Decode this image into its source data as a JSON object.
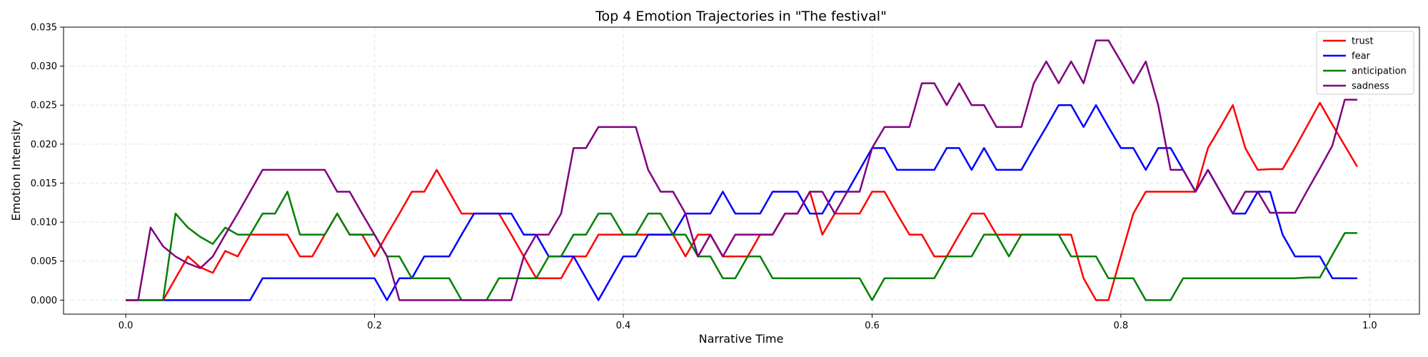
{
  "chart_data": {
    "type": "line",
    "title": "Top 4 Emotion Trajectories in \"The festival\"",
    "xlabel": "Narrative Time",
    "ylabel": "Emotion Intensity",
    "xlim": [
      -0.05,
      1.04
    ],
    "ylim": [
      -0.0018,
      0.035
    ],
    "xticks": [
      0.0,
      0.2,
      0.4,
      0.6,
      0.8,
      1.0
    ],
    "xtick_labels": [
      "0.0",
      "0.2",
      "0.4",
      "0.6",
      "0.8",
      "1.0"
    ],
    "yticks": [
      0.0,
      0.005,
      0.01,
      0.015,
      0.02,
      0.025,
      0.03,
      0.035
    ],
    "ytick_labels": [
      "0.000",
      "0.005",
      "0.010",
      "0.015",
      "0.020",
      "0.025",
      "0.030",
      "0.035"
    ],
    "grid": true,
    "legend_position": "top-right",
    "x": [
      0.0,
      0.01,
      0.02,
      0.03,
      0.04,
      0.05,
      0.06,
      0.07,
      0.08,
      0.09,
      0.1,
      0.11,
      0.12,
      0.13,
      0.14,
      0.15,
      0.16,
      0.17,
      0.18,
      0.19,
      0.2,
      0.21,
      0.22,
      0.23,
      0.24,
      0.25,
      0.26,
      0.27,
      0.28,
      0.29,
      0.3,
      0.31,
      0.32,
      0.33,
      0.34,
      0.35,
      0.36,
      0.37,
      0.38,
      0.39,
      0.4,
      0.41,
      0.42,
      0.43,
      0.44,
      0.45,
      0.46,
      0.47,
      0.48,
      0.49,
      0.5,
      0.51,
      0.52,
      0.53,
      0.54,
      0.55,
      0.56,
      0.57,
      0.58,
      0.59,
      0.6,
      0.61,
      0.62,
      0.63,
      0.64,
      0.65,
      0.66,
      0.67,
      0.68,
      0.69,
      0.7,
      0.71,
      0.72,
      0.73,
      0.74,
      0.75,
      0.76,
      0.77,
      0.78,
      0.79,
      0.8,
      0.81,
      0.82,
      0.83,
      0.84,
      0.85,
      0.86,
      0.87,
      0.88,
      0.89,
      0.9,
      0.91,
      0.92,
      0.93,
      0.94,
      0.95,
      0.96,
      0.97,
      0.98,
      0.99
    ],
    "series": [
      {
        "name": "trust",
        "color": "#ff0000",
        "values": [
          0,
          0,
          0,
          0,
          0.0028,
          0.0056,
          0.0042,
          0.0035,
          0.0063,
          0.0056,
          0.0084,
          0.0084,
          0.0084,
          0.0084,
          0.0056,
          0.0056,
          0.0084,
          0.0111,
          0.0084,
          0.0084,
          0.0056,
          0.0084,
          0.0111,
          0.0139,
          0.0139,
          0.0167,
          0.0139,
          0.0111,
          0.0111,
          0.0111,
          0.0111,
          0.0084,
          0.0056,
          0.0028,
          0.0028,
          0.0028,
          0.0056,
          0.0056,
          0.0084,
          0.0084,
          0.0084,
          0.0084,
          0.0084,
          0.0084,
          0.0084,
          0.0056,
          0.0084,
          0.0084,
          0.0056,
          0.0056,
          0.0056,
          0.0084,
          0.0084,
          0.0111,
          0.0111,
          0.0139,
          0.0084,
          0.0111,
          0.0111,
          0.0111,
          0.0139,
          0.0139,
          0.0111,
          0.0084,
          0.0084,
          0.0056,
          0.0056,
          0.0084,
          0.0111,
          0.0111,
          0.0084,
          0.0084,
          0.0084,
          0.0084,
          0.0084,
          0.0084,
          0.0084,
          0.0028,
          0,
          0,
          0.0056,
          0.0111,
          0.0139,
          0.0139,
          0.0139,
          0.0139,
          0.0139,
          0.0195,
          0.0222,
          0.025,
          0.0195,
          0.0167,
          0.0168,
          0.0168,
          0.0195,
          0.0224,
          0.0253,
          0.0225,
          0.0198,
          0.0171
        ]
      },
      {
        "name": "fear",
        "color": "#0000ff",
        "values": [
          0,
          0,
          0,
          0,
          0,
          0,
          0,
          0,
          0,
          0,
          0,
          0.0028,
          0.0028,
          0.0028,
          0.0028,
          0.0028,
          0.0028,
          0.0028,
          0.0028,
          0.0028,
          0.0028,
          0,
          0.0028,
          0.0028,
          0.0056,
          0.0056,
          0.0056,
          0.0084,
          0.0111,
          0.0111,
          0.0111,
          0.0111,
          0.0084,
          0.0084,
          0.0056,
          0.0056,
          0.0056,
          0.0028,
          0,
          0.0028,
          0.0056,
          0.0056,
          0.0084,
          0.0084,
          0.0084,
          0.0111,
          0.0111,
          0.0111,
          0.0139,
          0.0111,
          0.0111,
          0.0111,
          0.0139,
          0.0139,
          0.0139,
          0.0111,
          0.0111,
          0.0139,
          0.0139,
          0.0167,
          0.0195,
          0.0195,
          0.0167,
          0.0167,
          0.0167,
          0.0167,
          0.0195,
          0.0195,
          0.0167,
          0.0195,
          0.0167,
          0.0167,
          0.0167,
          0.0195,
          0.0222,
          0.025,
          0.025,
          0.0222,
          0.025,
          0.0222,
          0.0195,
          0.0195,
          0.0167,
          0.0195,
          0.0195,
          0.0167,
          0.0139,
          0.0167,
          0.0139,
          0.0111,
          0.0111,
          0.0139,
          0.0139,
          0.0084,
          0.0056,
          0.0056,
          0.0056,
          0.0028,
          0.0028,
          0.0028
        ]
      },
      {
        "name": "anticipation",
        "color": "#008000",
        "values": [
          0,
          0,
          0,
          0,
          0.0111,
          0.0093,
          0.0081,
          0.0072,
          0.0093,
          0.0084,
          0.0084,
          0.0111,
          0.0111,
          0.0139,
          0.0084,
          0.0084,
          0.0084,
          0.0111,
          0.0084,
          0.0084,
          0.0084,
          0.0056,
          0.0056,
          0.0028,
          0.0028,
          0.0028,
          0.0028,
          0,
          0,
          0,
          0.0028,
          0.0028,
          0.0028,
          0.0028,
          0.0056,
          0.0056,
          0.0084,
          0.0084,
          0.0111,
          0.0111,
          0.0084,
          0.0084,
          0.0111,
          0.0111,
          0.0084,
          0.0084,
          0.0056,
          0.0056,
          0.0028,
          0.0028,
          0.0056,
          0.0056,
          0.0028,
          0.0028,
          0.0028,
          0.0028,
          0.0028,
          0.0028,
          0.0028,
          0.0028,
          0,
          0.0028,
          0.0028,
          0.0028,
          0.0028,
          0.0028,
          0.0056,
          0.0056,
          0.0056,
          0.0084,
          0.0084,
          0.0056,
          0.0084,
          0.0084,
          0.0084,
          0.0084,
          0.0056,
          0.0056,
          0.0056,
          0.0028,
          0.0028,
          0.0028,
          0,
          0,
          0,
          0.0028,
          0.0028,
          0.0028,
          0.0028,
          0.0028,
          0.0028,
          0.0028,
          0.0028,
          0.0028,
          0.0028,
          0.0029,
          0.0029,
          0.0058,
          0.0086,
          0.0086
        ]
      },
      {
        "name": "sadness",
        "color": "#800080",
        "values": [
          0,
          0,
          0.0093,
          0.0069,
          0.0056,
          0.0047,
          0.0041,
          0.0056,
          0.0084,
          0.0111,
          0.0139,
          0.0167,
          0.0167,
          0.0167,
          0.0167,
          0.0167,
          0.0167,
          0.0139,
          0.0139,
          0.0111,
          0.0084,
          0.0056,
          0,
          0,
          0,
          0,
          0,
          0,
          0,
          0,
          0,
          0,
          0.0056,
          0.0084,
          0.0084,
          0.0111,
          0.0195,
          0.0195,
          0.0222,
          0.0222,
          0.0222,
          0.0222,
          0.0167,
          0.0139,
          0.0139,
          0.0111,
          0.0056,
          0.0084,
          0.0056,
          0.0084,
          0.0084,
          0.0084,
          0.0084,
          0.0111,
          0.0111,
          0.0139,
          0.0139,
          0.0111,
          0.0139,
          0.0139,
          0.0195,
          0.0222,
          0.0222,
          0.0222,
          0.0278,
          0.0278,
          0.025,
          0.0278,
          0.025,
          0.025,
          0.0222,
          0.0222,
          0.0222,
          0.0278,
          0.0306,
          0.0278,
          0.0306,
          0.0278,
          0.0333,
          0.0333,
          0.0306,
          0.0278,
          0.0306,
          0.025,
          0.0167,
          0.0167,
          0.0139,
          0.0167,
          0.0139,
          0.0111,
          0.0139,
          0.0139,
          0.0112,
          0.0112,
          0.0112,
          0.0141,
          0.0169,
          0.0198,
          0.0257,
          0.0257
        ]
      }
    ]
  }
}
